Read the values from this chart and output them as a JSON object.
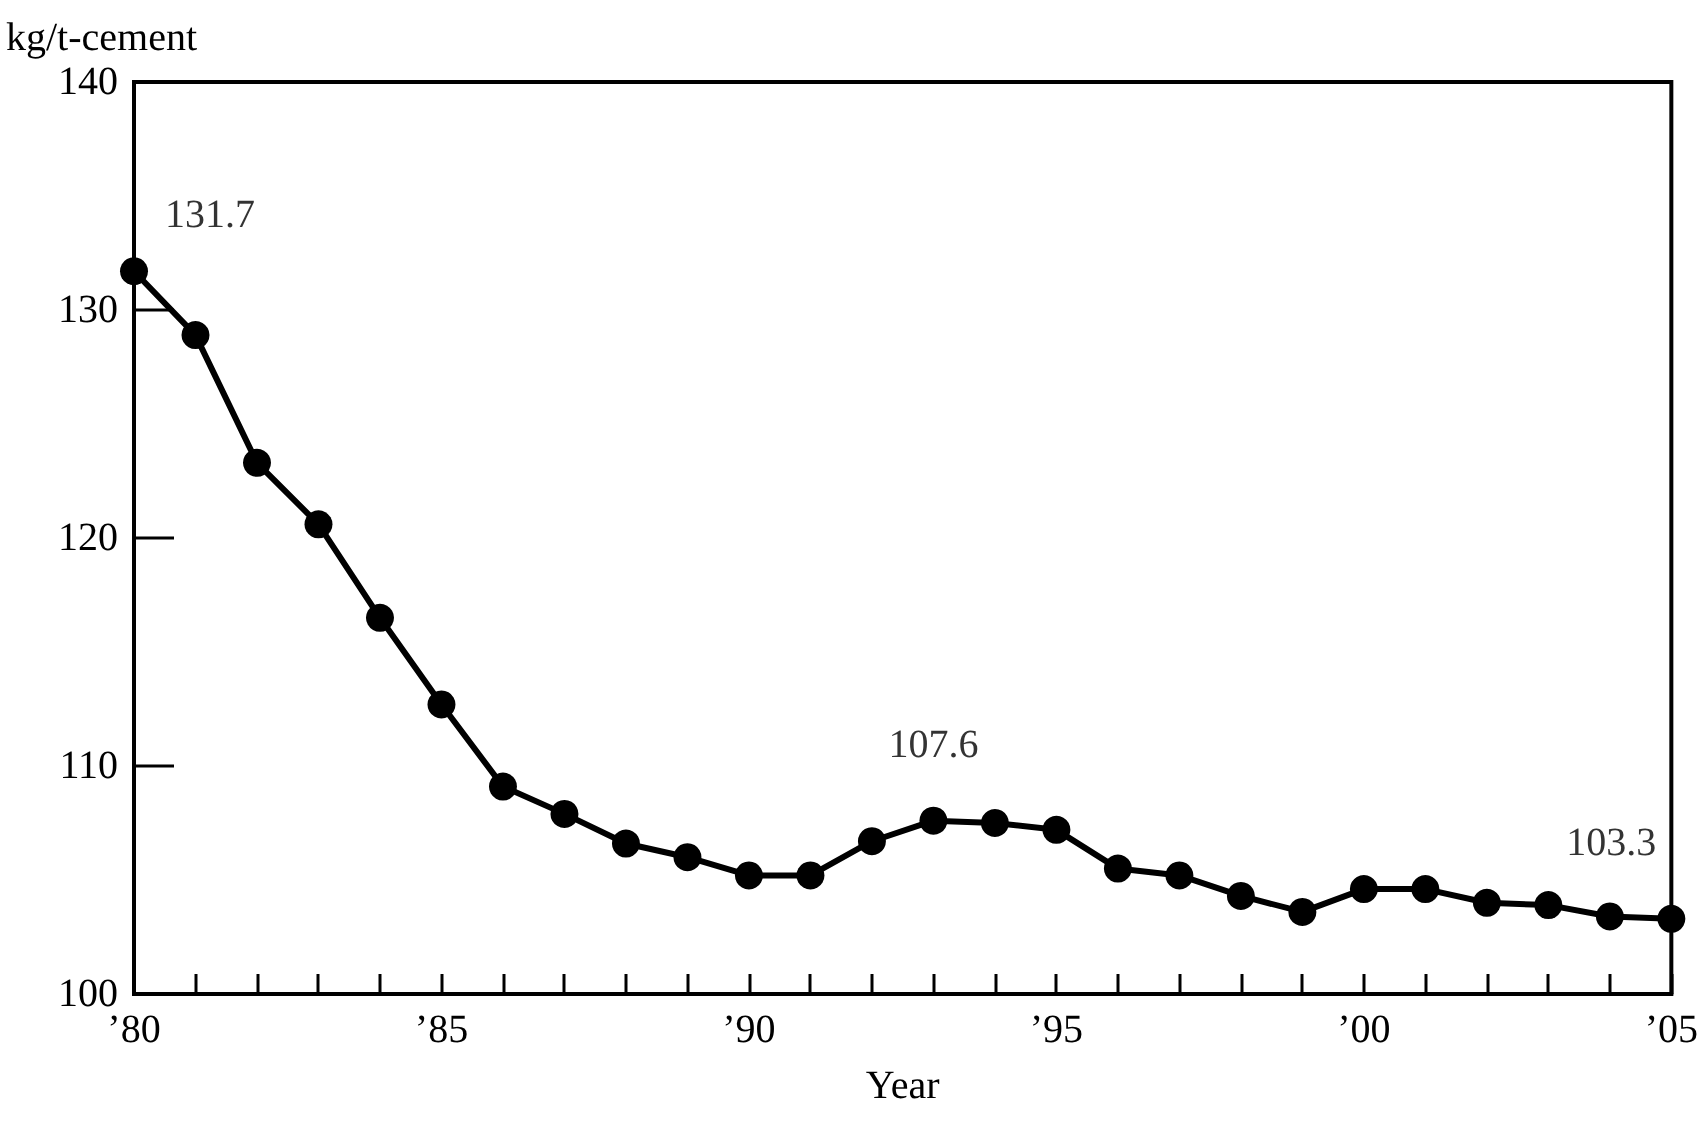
{
  "chart_data": {
    "type": "line",
    "ylabel": "kg/t-cement",
    "xlabel": "Year",
    "x": [
      1980,
      1981,
      1982,
      1983,
      1984,
      1985,
      1986,
      1987,
      1988,
      1989,
      1990,
      1991,
      1992,
      1993,
      1994,
      1995,
      1996,
      1997,
      1998,
      1999,
      2000,
      2001,
      2002,
      2003,
      2004,
      2005
    ],
    "series": [
      {
        "color": "#000000",
        "values": [
          131.7,
          128.9,
          123.3,
          120.6,
          116.5,
          112.7,
          109.1,
          107.9,
          106.6,
          106.0,
          105.2,
          105.2,
          106.7,
          107.6,
          107.5,
          107.2,
          105.5,
          105.2,
          104.3,
          103.6,
          104.6,
          104.6,
          104.0,
          103.9,
          103.4,
          103.3
        ]
      }
    ],
    "xlim": [
      1980,
      2005
    ],
    "xticks": [
      {
        "value": 1980,
        "label": "’80"
      },
      {
        "value": 1981,
        "label": null
      },
      {
        "value": 1982,
        "label": null
      },
      {
        "value": 1983,
        "label": null
      },
      {
        "value": 1984,
        "label": null
      },
      {
        "value": 1985,
        "label": "’85"
      },
      {
        "value": 1986,
        "label": null
      },
      {
        "value": 1987,
        "label": null
      },
      {
        "value": 1988,
        "label": null
      },
      {
        "value": 1989,
        "label": null
      },
      {
        "value": 1990,
        "label": "’90"
      },
      {
        "value": 1991,
        "label": null
      },
      {
        "value": 1992,
        "label": null
      },
      {
        "value": 1993,
        "label": null
      },
      {
        "value": 1994,
        "label": null
      },
      {
        "value": 1995,
        "label": "’95"
      },
      {
        "value": 1996,
        "label": null
      },
      {
        "value": 1997,
        "label": null
      },
      {
        "value": 1998,
        "label": null
      },
      {
        "value": 1999,
        "label": null
      },
      {
        "value": 2000,
        "label": "’00"
      },
      {
        "value": 2001,
        "label": null
      },
      {
        "value": 2002,
        "label": null
      },
      {
        "value": 2003,
        "label": null
      },
      {
        "value": 2004,
        "label": null
      },
      {
        "value": 2005,
        "label": "’05"
      }
    ],
    "ylim": [
      100,
      140
    ],
    "yticks": [
      100,
      110,
      120,
      130,
      140
    ],
    "annotations": [
      {
        "text": "131.7",
        "x": 1980,
        "y": 131.7
      },
      {
        "text": "107.6",
        "x": 1993,
        "y": 107.6
      },
      {
        "text": "103.3",
        "x": 2005,
        "y": 103.3
      }
    ],
    "marker": "circle",
    "line_style": "solid",
    "grid": false
  }
}
